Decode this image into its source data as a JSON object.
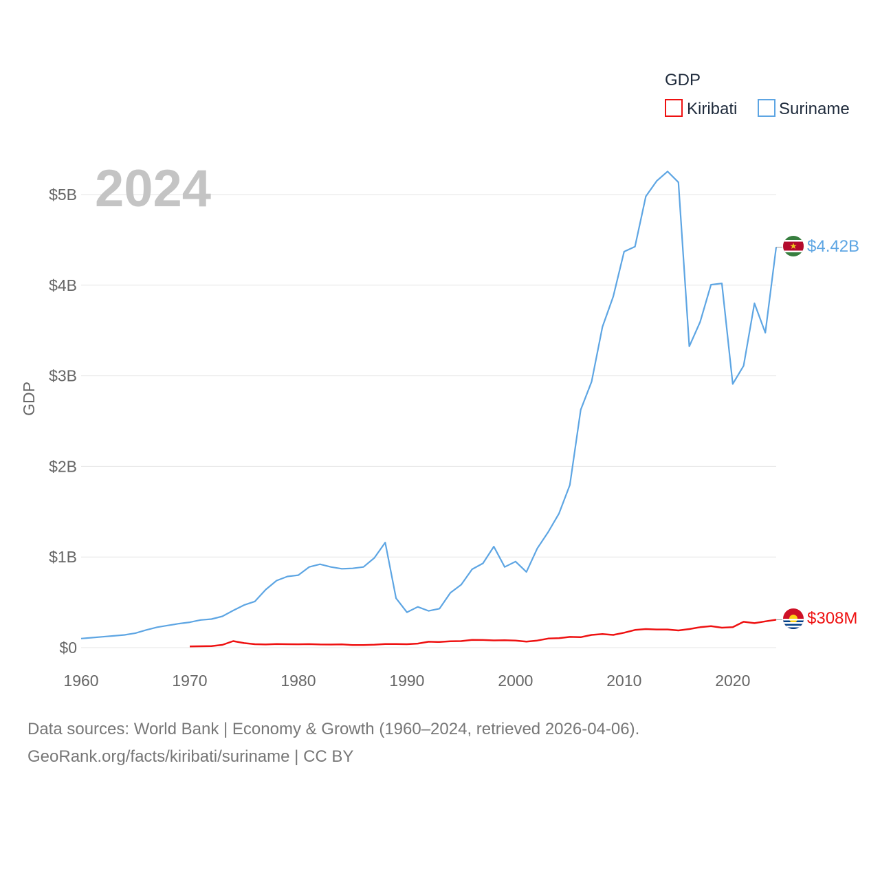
{
  "colors": {
    "kiribati": "#ee1111",
    "suriname": "#5da5e3",
    "grid": "#e6e6e6",
    "text": "#666666"
  },
  "chart_data": {
    "type": "line",
    "title": "",
    "year_display": "2024",
    "ylabel": "GDP",
    "xlabel": "",
    "xlim": [
      1960,
      2024
    ],
    "ylim": [
      0,
      5300000000
    ],
    "x_ticks": [
      {
        "value": 1960,
        "label": "1960"
      },
      {
        "value": 1970,
        "label": "1970"
      },
      {
        "value": 1980,
        "label": "1980"
      },
      {
        "value": 1990,
        "label": "1990"
      },
      {
        "value": 2000,
        "label": "2000"
      },
      {
        "value": 2010,
        "label": "2010"
      },
      {
        "value": 2020,
        "label": "2020"
      }
    ],
    "y_ticks": [
      {
        "value": 0,
        "label": "$0"
      },
      {
        "value": 1000000000,
        "label": "$1B"
      },
      {
        "value": 2000000000,
        "label": "$2B"
      },
      {
        "value": 3000000000,
        "label": "$3B"
      },
      {
        "value": 4000000000,
        "label": "$4B"
      },
      {
        "value": 5000000000,
        "label": "$5B"
      }
    ],
    "legend": {
      "title": "GDP",
      "position": "top-right"
    },
    "series": [
      {
        "name": "Kiribati",
        "color": "#ee1111",
        "end_label": "$308M",
        "x": [
          1970,
          1971,
          1972,
          1973,
          1974,
          1975,
          1976,
          1977,
          1978,
          1979,
          1980,
          1981,
          1982,
          1983,
          1984,
          1985,
          1986,
          1987,
          1988,
          1989,
          1990,
          1991,
          1992,
          1993,
          1994,
          1995,
          1996,
          1997,
          1998,
          1999,
          2000,
          2001,
          2002,
          2003,
          2004,
          2005,
          2006,
          2007,
          2008,
          2009,
          2010,
          2011,
          2012,
          2013,
          2014,
          2015,
          2016,
          2017,
          2018,
          2019,
          2020,
          2021,
          2022,
          2023,
          2024
        ],
        "values": [
          14000000,
          15000000,
          17000000,
          30000000,
          72000000,
          50000000,
          38000000,
          35000000,
          40000000,
          38000000,
          37000000,
          39000000,
          35000000,
          34000000,
          36000000,
          28000000,
          29000000,
          32000000,
          40000000,
          40000000,
          38000000,
          45000000,
          65000000,
          62000000,
          70000000,
          72000000,
          85000000,
          84000000,
          80000000,
          82000000,
          78000000,
          67000000,
          78000000,
          100000000,
          105000000,
          118000000,
          115000000,
          140000000,
          150000000,
          140000000,
          165000000,
          195000000,
          205000000,
          200000000,
          200000000,
          190000000,
          205000000,
          225000000,
          237000000,
          220000000,
          225000000,
          285000000,
          270000000,
          290000000,
          308000000
        ]
      },
      {
        "name": "Suriname",
        "color": "#5da5e3",
        "end_label": "$4.42B",
        "x": [
          1960,
          1961,
          1962,
          1963,
          1964,
          1965,
          1966,
          1967,
          1968,
          1969,
          1970,
          1971,
          1972,
          1973,
          1974,
          1975,
          1976,
          1977,
          1978,
          1979,
          1980,
          1981,
          1982,
          1983,
          1984,
          1985,
          1986,
          1987,
          1988,
          1989,
          1990,
          1991,
          1992,
          1993,
          1994,
          1995,
          1996,
          1997,
          1998,
          1999,
          2000,
          2001,
          2002,
          2003,
          2004,
          2005,
          2006,
          2007,
          2008,
          2009,
          2010,
          2011,
          2012,
          2013,
          2014,
          2015,
          2016,
          2017,
          2018,
          2019,
          2020,
          2021,
          2022,
          2023,
          2024
        ],
        "values": [
          100000000,
          110000000,
          120000000,
          130000000,
          140000000,
          160000000,
          195000000,
          225000000,
          245000000,
          265000000,
          280000000,
          305000000,
          315000000,
          345000000,
          410000000,
          470000000,
          510000000,
          640000000,
          740000000,
          785000000,
          800000000,
          890000000,
          920000000,
          890000000,
          870000000,
          875000000,
          890000000,
          990000000,
          1160000000,
          545000000,
          390000000,
          450000000,
          405000000,
          430000000,
          605000000,
          695000000,
          865000000,
          930000000,
          1115000000,
          890000000,
          950000000,
          835000000,
          1095000000,
          1275000000,
          1480000000,
          1795000000,
          2625000000,
          2935000000,
          3540000000,
          3875000000,
          4370000000,
          4425000000,
          4980000000,
          5150000000,
          5255000000,
          5135000000,
          3325000000,
          3595000000,
          4005000000,
          4020000000,
          2910000000,
          3110000000,
          3800000000,
          3475000000,
          4420000000
        ]
      }
    ]
  },
  "footer": {
    "line1": "Data sources: World Bank | Economy & Growth (1960–2024, retrieved 2026-04-06).",
    "line2": "GeoRank.org/facts/kiribati/suriname | CC BY"
  }
}
